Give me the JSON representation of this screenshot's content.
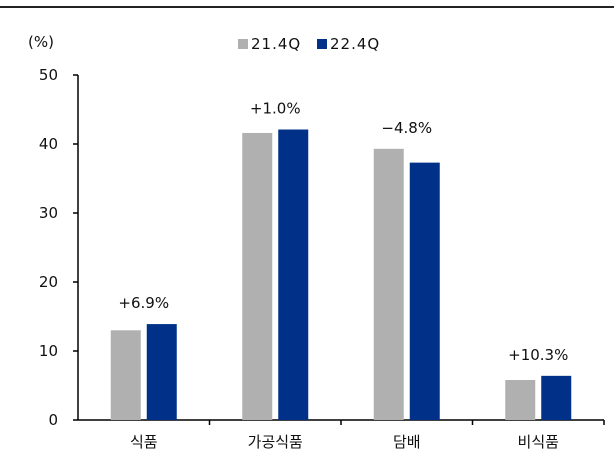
{
  "chart_data": {
    "type": "bar",
    "title": "",
    "ylabel": "(%)",
    "xlabel": "",
    "ylim": [
      0,
      50
    ],
    "yticks": [
      0,
      10,
      20,
      30,
      40,
      50
    ],
    "categories": [
      "식품",
      "가공식품",
      "담배",
      "비식품"
    ],
    "series": [
      {
        "name": "21.4Q",
        "values": [
          13.0,
          41.6,
          39.3,
          5.8
        ]
      },
      {
        "name": "22.4Q",
        "values": [
          13.9,
          42.1,
          37.3,
          6.4
        ]
      }
    ],
    "annotations": [
      "+6.9%",
      "+1.0%",
      "−4.8%",
      "+10.3%"
    ],
    "legend_position": "top-center",
    "grid": false,
    "colors": {
      "21.4Q": "#b0b0b0",
      "22.4Q": "#003087"
    }
  }
}
